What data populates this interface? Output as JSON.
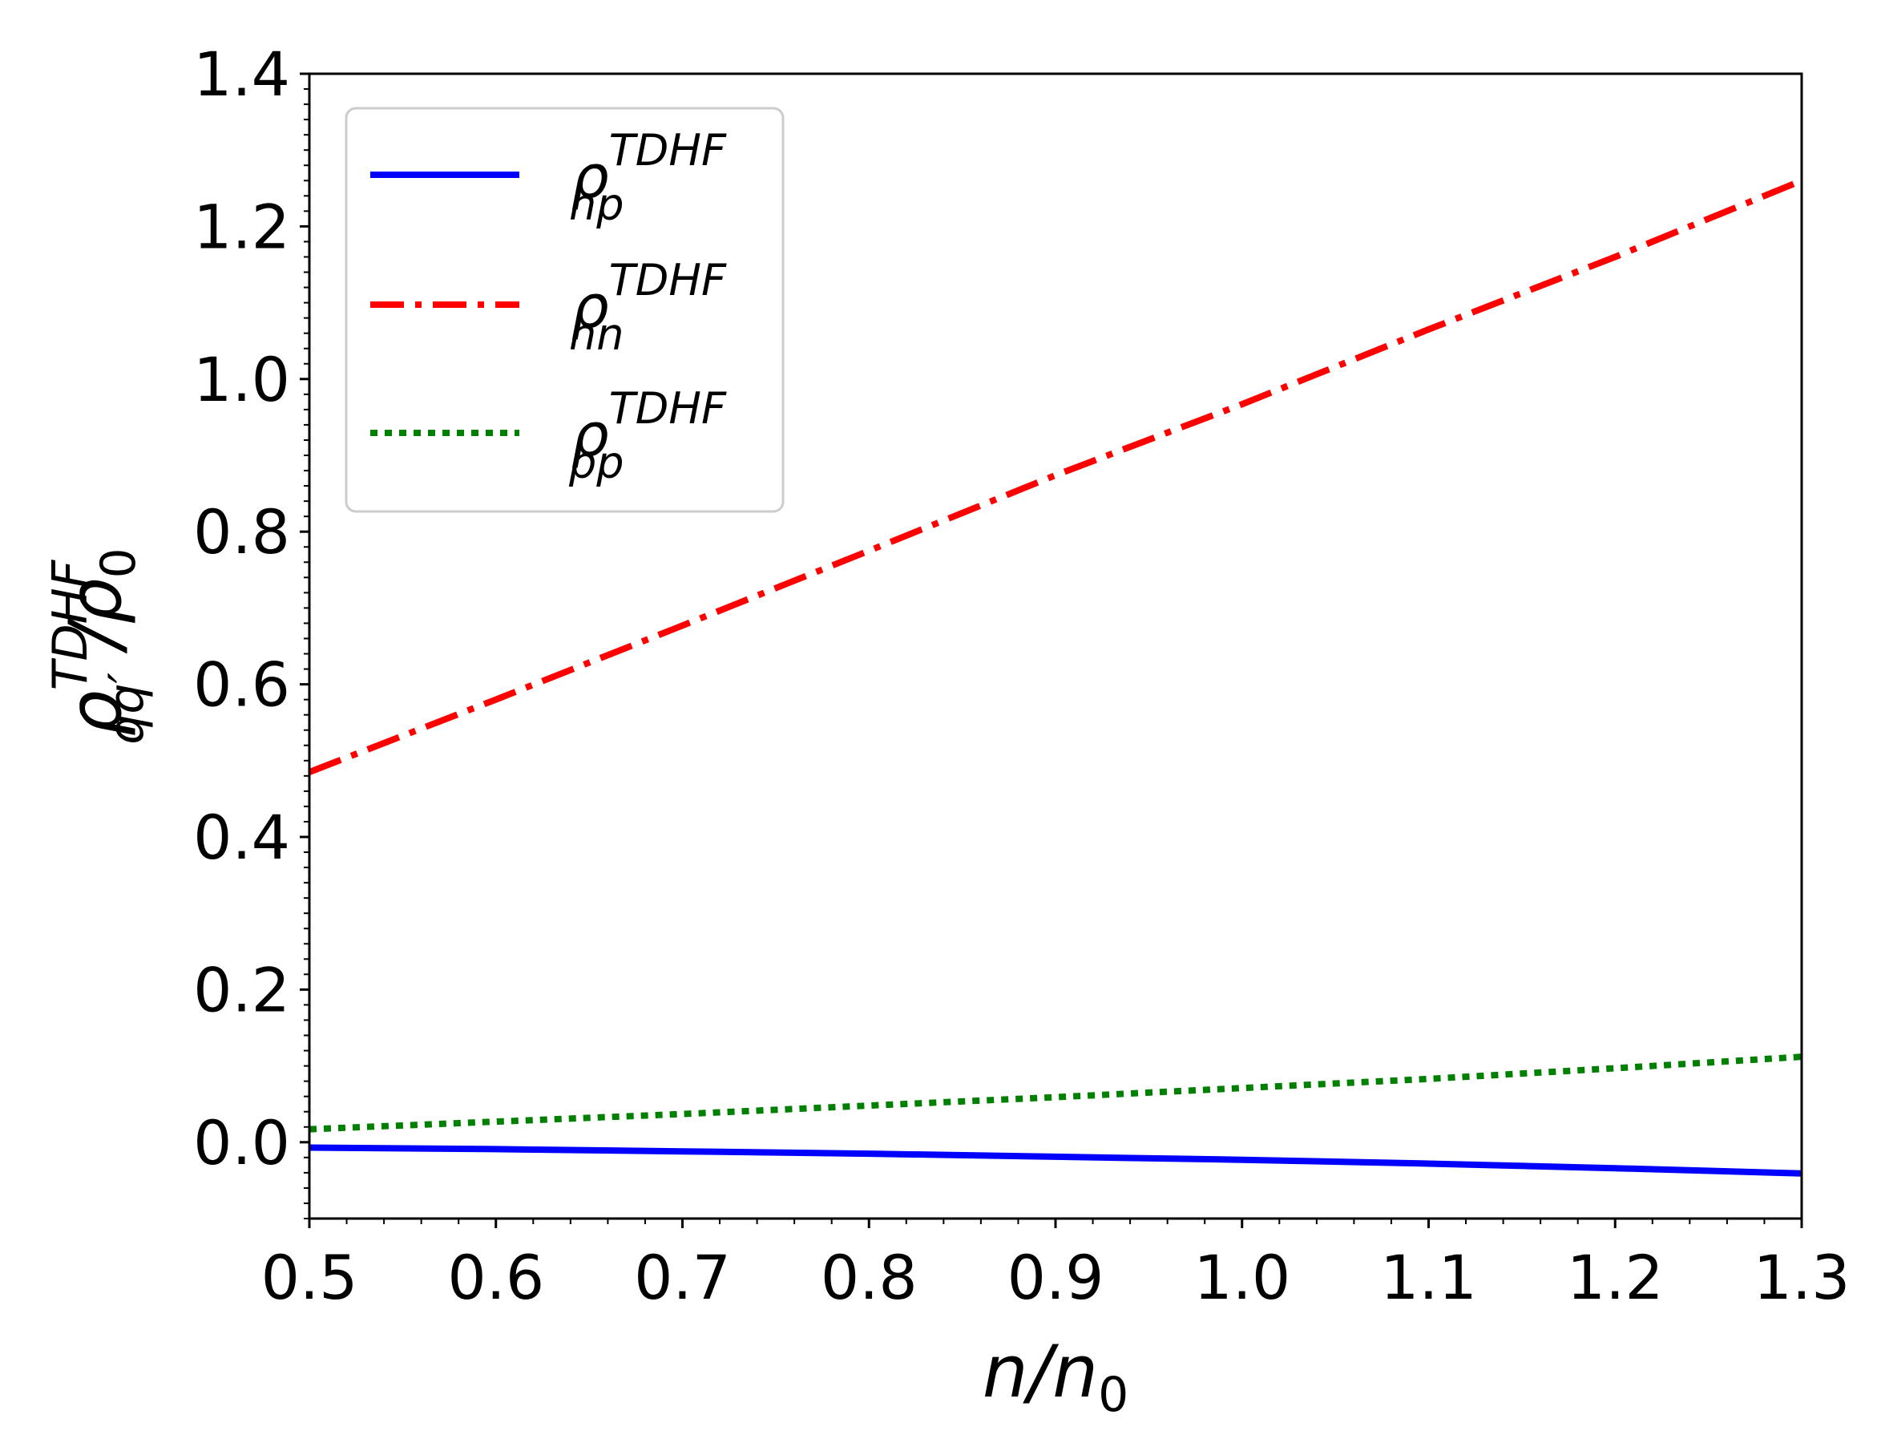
{
  "chart_data": {
    "type": "line",
    "xlim": [
      0.5,
      1.3
    ],
    "ylim": [
      -0.1,
      1.4
    ],
    "x_ticks": [
      "0.5",
      "0.6",
      "0.7",
      "0.8",
      "0.9",
      "1.0",
      "1.1",
      "1.2",
      "1.3"
    ],
    "y_ticks": [
      "0.0",
      "0.2",
      "0.4",
      "0.6",
      "0.8",
      "1.0",
      "1.2",
      "1.4"
    ],
    "xlabel": {
      "main": "n/n",
      "sub": "0"
    },
    "ylabel": {
      "main": "ρ",
      "sup": "TDHF",
      "sub": "qq′",
      "tail": "/ρ",
      "tail_sub": "0"
    },
    "grid": false,
    "legend_position": "top-left",
    "series": [
      {
        "name": "ρ_np^TDHF",
        "legend": {
          "main": "ρ",
          "sup": "TDHF",
          "sub": "np"
        },
        "color": "#0000ff",
        "style": "solid",
        "x": [
          0.5,
          0.6,
          0.7,
          0.8,
          0.9,
          1.0,
          1.1,
          1.2,
          1.3
        ],
        "y": [
          -0.007,
          -0.009,
          -0.012,
          -0.015,
          -0.019,
          -0.023,
          -0.028,
          -0.034,
          -0.041
        ]
      },
      {
        "name": "ρ_nn^TDHF",
        "legend": {
          "main": "ρ",
          "sup": "TDHF",
          "sub": "nn"
        },
        "color": "#ff0000",
        "style": "dashdot",
        "x": [
          0.5,
          0.6,
          0.7,
          0.8,
          0.9,
          1.0,
          1.1,
          1.2,
          1.3
        ],
        "y": [
          0.485,
          0.58,
          0.677,
          0.775,
          0.874,
          0.967,
          1.065,
          1.16,
          1.26
        ]
      },
      {
        "name": "ρ_pp^TDHF",
        "legend": {
          "main": "ρ",
          "sup": "TDHF",
          "sub": "pp"
        },
        "color": "#008000",
        "style": "dotted",
        "x": [
          0.5,
          0.6,
          0.7,
          0.8,
          0.9,
          1.0,
          1.1,
          1.2,
          1.3
        ],
        "y": [
          0.017,
          0.027,
          0.037,
          0.048,
          0.059,
          0.071,
          0.083,
          0.097,
          0.112
        ]
      }
    ]
  }
}
